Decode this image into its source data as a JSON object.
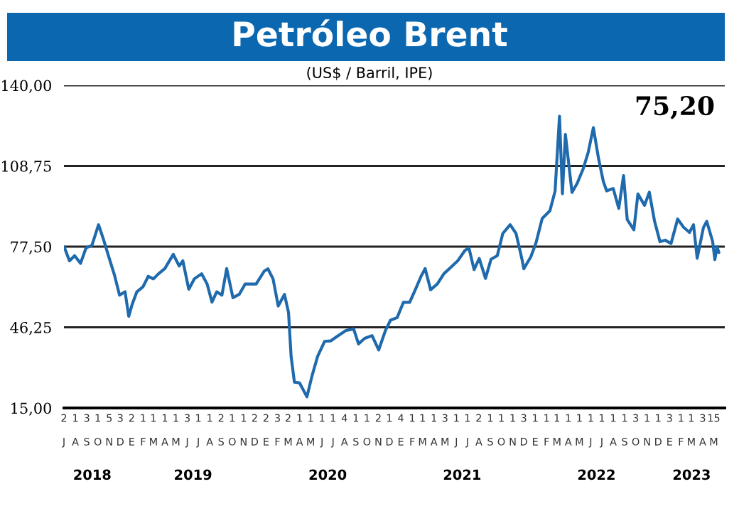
{
  "chart_data": {
    "type": "line",
    "title": "Petróleo Brent",
    "subtitle": "(US$ / Barril, IPE)",
    "x": [
      "2018-07-02",
      "2018-07-16",
      "2018-07-30",
      "2018-08-15",
      "2018-08-30",
      "2018-09-15",
      "2018-10-03",
      "2018-10-17",
      "2018-11-01",
      "2018-11-15",
      "2018-11-29",
      "2018-12-14",
      "2018-12-24",
      "2019-01-02",
      "2019-01-15",
      "2019-02-01",
      "2019-02-15",
      "2019-03-01",
      "2019-03-15",
      "2019-04-01",
      "2019-04-24",
      "2019-05-10",
      "2019-05-20",
      "2019-06-05",
      "2019-06-20",
      "2019-07-10",
      "2019-07-25",
      "2019-08-07",
      "2019-08-20",
      "2019-09-03",
      "2019-09-16",
      "2019-10-03",
      "2019-10-20",
      "2019-11-05",
      "2019-11-20",
      "2019-12-05",
      "2019-12-27",
      "2020-01-06",
      "2020-01-20",
      "2020-02-03",
      "2020-02-20",
      "2020-03-02",
      "2020-03-09",
      "2020-03-18",
      "2020-04-01",
      "2020-04-21",
      "2020-05-04",
      "2020-05-20",
      "2020-06-08",
      "2020-06-25",
      "2020-07-15",
      "2020-08-05",
      "2020-08-26",
      "2020-09-08",
      "2020-09-25",
      "2020-10-15",
      "2020-11-02",
      "2020-11-20",
      "2020-12-04",
      "2020-12-22",
      "2021-01-08",
      "2021-01-25",
      "2021-02-10",
      "2021-02-25",
      "2021-03-08",
      "2021-03-23",
      "2021-04-10",
      "2021-04-28",
      "2021-05-17",
      "2021-06-04",
      "2021-06-24",
      "2021-07-05",
      "2021-07-19",
      "2021-08-02",
      "2021-08-19",
      "2021-09-03",
      "2021-09-20",
      "2021-10-05",
      "2021-10-25",
      "2021-11-10",
      "2021-11-26",
      "2021-12-01",
      "2021-12-20",
      "2022-01-03",
      "2022-01-20",
      "2022-02-10",
      "2022-02-24",
      "2022-03-08",
      "2022-03-16",
      "2022-03-24",
      "2022-04-11",
      "2022-04-25",
      "2022-05-11",
      "2022-05-25",
      "2022-06-08",
      "2022-06-22",
      "2022-07-05",
      "2022-07-14",
      "2022-08-01",
      "2022-08-16",
      "2022-08-29",
      "2022-09-08",
      "2022-09-26",
      "2022-10-07",
      "2022-10-25",
      "2022-11-07",
      "2022-11-21",
      "2022-12-06",
      "2022-12-20",
      "2023-01-05",
      "2023-01-23",
      "2023-02-08",
      "2023-02-24",
      "2023-03-07",
      "2023-03-17",
      "2023-04-03",
      "2023-04-12",
      "2023-04-28",
      "2023-05-04",
      "2023-05-10",
      "2023-05-15"
    ],
    "series": [
      {
        "color": "#1f6aad",
        "values": [
          77.3,
          72,
          74,
          71,
          77,
          78,
          86,
          80,
          73,
          66.6,
          58.7,
          60,
          50.5,
          55,
          60,
          62,
          66,
          65,
          67,
          69,
          74.5,
          70,
          72,
          61,
          65,
          67,
          63,
          56,
          60,
          58.7,
          69,
          57.7,
          59,
          63,
          63,
          63,
          68,
          68.9,
          65,
          54.5,
          59,
          52,
          35,
          25,
          24.7,
          19.3,
          27,
          35,
          40.8,
          41,
          43,
          45,
          45.6,
          39.8,
          42,
          43,
          37.5,
          44.9,
          49,
          50,
          55.9,
          55.9,
          61,
          66,
          69,
          60.8,
          63,
          67,
          69.5,
          71.9,
          76,
          77,
          68.6,
          72.9,
          65.2,
          72.6,
          74,
          82.6,
          86,
          82.6,
          72.7,
          68.9,
          73.5,
          78.9,
          88.4,
          91.4,
          99,
          128,
          98,
          121,
          98.5,
          102,
          107.5,
          114,
          123.6,
          111.7,
          102.8,
          99.1,
          100,
          92.3,
          105,
          88,
          84,
          97.9,
          93.5,
          98.6,
          87.5,
          79.4,
          80,
          78.7,
          88.2,
          85,
          83,
          86,
          73,
          84.9,
          87.3,
          79.5,
          72.5,
          77.4,
          75.2
        ]
      }
    ],
    "xlim": [
      "2018-07-01",
      "2023-05-31"
    ],
    "xticks": [
      {
        "value": "2018-07",
        "label": "2"
      },
      {
        "value": "2018-08",
        "label": "1"
      },
      {
        "value": "2018-09",
        "label": "3"
      },
      {
        "value": "2018-10",
        "label": "1"
      },
      {
        "value": "2018-11",
        "label": "5"
      },
      {
        "value": "2018-12",
        "label": "3"
      },
      {
        "value": "2019-01",
        "label": "2"
      },
      {
        "value": "2019-02",
        "label": "1"
      },
      {
        "value": "2019-03",
        "label": "1"
      },
      {
        "value": "2019-04",
        "label": "1"
      },
      {
        "value": "2019-05",
        "label": "1"
      },
      {
        "value": "2019-06",
        "label": "3"
      },
      {
        "value": "2019-07",
        "label": "1"
      },
      {
        "value": "2019-08",
        "label": "1"
      },
      {
        "value": "2019-09",
        "label": "2"
      },
      {
        "value": "2019-10",
        "label": "1"
      },
      {
        "value": "2019-11",
        "label": "1"
      },
      {
        "value": "2019-12",
        "label": "2"
      },
      {
        "value": "2020-01",
        "label": "2"
      },
      {
        "value": "2020-02",
        "label": "3"
      },
      {
        "value": "2020-03",
        "label": "2"
      },
      {
        "value": "2020-04",
        "label": "1"
      },
      {
        "value": "2020-05",
        "label": "1"
      },
      {
        "value": "2020-06",
        "label": "1"
      },
      {
        "value": "2020-07",
        "label": "1"
      },
      {
        "value": "2020-08",
        "label": "4"
      },
      {
        "value": "2020-09",
        "label": "1"
      },
      {
        "value": "2020-10",
        "label": "1"
      },
      {
        "value": "2020-11",
        "label": "2"
      },
      {
        "value": "2020-12",
        "label": "1"
      },
      {
        "value": "2021-01",
        "label": "4"
      },
      {
        "value": "2021-02",
        "label": "1"
      },
      {
        "value": "2021-03",
        "label": "1"
      },
      {
        "value": "2021-04",
        "label": "1"
      },
      {
        "value": "2021-05",
        "label": "3"
      },
      {
        "value": "2021-06",
        "label": "1"
      },
      {
        "value": "2021-07",
        "label": "1"
      },
      {
        "value": "2021-08",
        "label": "2"
      },
      {
        "value": "2021-09",
        "label": "1"
      },
      {
        "value": "2021-10",
        "label": "1"
      },
      {
        "value": "2021-11",
        "label": "1"
      },
      {
        "value": "2021-12",
        "label": "3"
      },
      {
        "value": "2022-01",
        "label": "1"
      },
      {
        "value": "2022-02",
        "label": "1"
      },
      {
        "value": "2022-03",
        "label": "1"
      },
      {
        "value": "2022-04",
        "label": "1"
      },
      {
        "value": "2022-05",
        "label": "1"
      },
      {
        "value": "2022-06",
        "label": "1"
      },
      {
        "value": "2022-07",
        "label": "1"
      },
      {
        "value": "2022-08",
        "label": "1"
      },
      {
        "value": "2022-09",
        "label": "1"
      },
      {
        "value": "2022-10",
        "label": "3"
      },
      {
        "value": "2022-11",
        "label": "1"
      },
      {
        "value": "2022-12",
        "label": "1"
      },
      {
        "value": "2023-01",
        "label": "3"
      },
      {
        "value": "2023-02",
        "label": "1"
      },
      {
        "value": "2023-03",
        "label": "1"
      },
      {
        "value": "2023-04",
        "label": "3"
      },
      {
        "value": "2023-05",
        "label": "15"
      }
    ],
    "ylim": [
      15,
      140
    ],
    "yticks": [
      {
        "value": 15,
        "label": "15,00"
      },
      {
        "value": 46.25,
        "label": "46,25"
      },
      {
        "value": 77.5,
        "label": "77,50"
      },
      {
        "value": 108.75,
        "label": "108,75"
      },
      {
        "value": 140,
        "label": "140,00"
      }
    ],
    "grid": "y",
    "legend": false,
    "annotations": [
      "75,20",
      "J",
      "A",
      "S",
      "O",
      "N",
      "D",
      "E",
      "F",
      "M",
      "A",
      "M",
      "J",
      "J",
      "A",
      "S",
      "O",
      "N",
      "D",
      "E",
      "F",
      "M",
      "A",
      "M",
      "J",
      "J",
      "A",
      "S",
      "O",
      "N",
      "D",
      "E",
      "F",
      "M",
      "A",
      "M",
      "J",
      "J",
      "A",
      "S",
      "O",
      "N",
      "D",
      "E",
      "F",
      "M",
      "A",
      "M",
      "J",
      "J",
      "A",
      "S",
      "O",
      "N",
      "D",
      "E",
      "F",
      "M",
      "A",
      "M",
      "2018",
      "2019",
      "2020",
      "2021",
      "2022",
      "2023"
    ]
  }
}
